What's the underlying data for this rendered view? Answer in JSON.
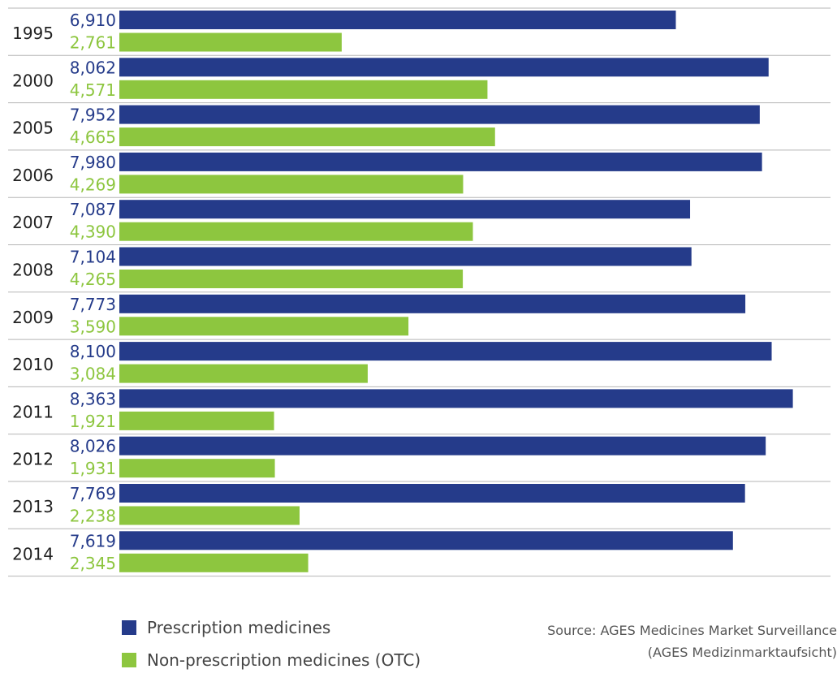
{
  "chart_data": {
    "type": "bar",
    "orientation": "horizontal",
    "categories": [
      "1995",
      "2000",
      "2005",
      "2006",
      "2007",
      "2008",
      "2009",
      "2010",
      "2011",
      "2012",
      "2013",
      "2014"
    ],
    "series": [
      {
        "name": "Prescription medicines",
        "color": "#253b8a",
        "values": [
          6910,
          8062,
          7952,
          7980,
          7087,
          7104,
          7773,
          8100,
          8363,
          8026,
          7769,
          7619
        ],
        "labels": [
          "6,910",
          "8,062",
          "7,952",
          "7,980",
          "7,087",
          "7,104",
          "7,773",
          "8,100",
          "8,363",
          "8,026",
          "7,769",
          "7,619"
        ]
      },
      {
        "name": "Non-prescription medicines (OTC)",
        "color": "#8dc63f",
        "values": [
          2761,
          4571,
          4665,
          4269,
          4390,
          4265,
          3590,
          3084,
          1921,
          1931,
          2238,
          2345
        ],
        "labels": [
          "2,761",
          "4,571",
          "4,665",
          "4,269",
          "4,390",
          "4,265",
          "3,590",
          "3,084",
          "1,921",
          "1,931",
          "2,238",
          "2,345"
        ]
      }
    ],
    "xlim": [
      0,
      8400
    ],
    "gridlines": "horizontal separators between years",
    "legend_position": "bottom"
  },
  "legend": {
    "items": [
      {
        "label": "Prescription medicines",
        "color": "#253b8a"
      },
      {
        "label": "Non-prescription medicines (OTC)",
        "color": "#8dc63f"
      }
    ]
  },
  "source": {
    "line1": "Source: AGES Medicines Market Surveillance",
    "line2": "(AGES Medizinmarktaufsicht)"
  }
}
